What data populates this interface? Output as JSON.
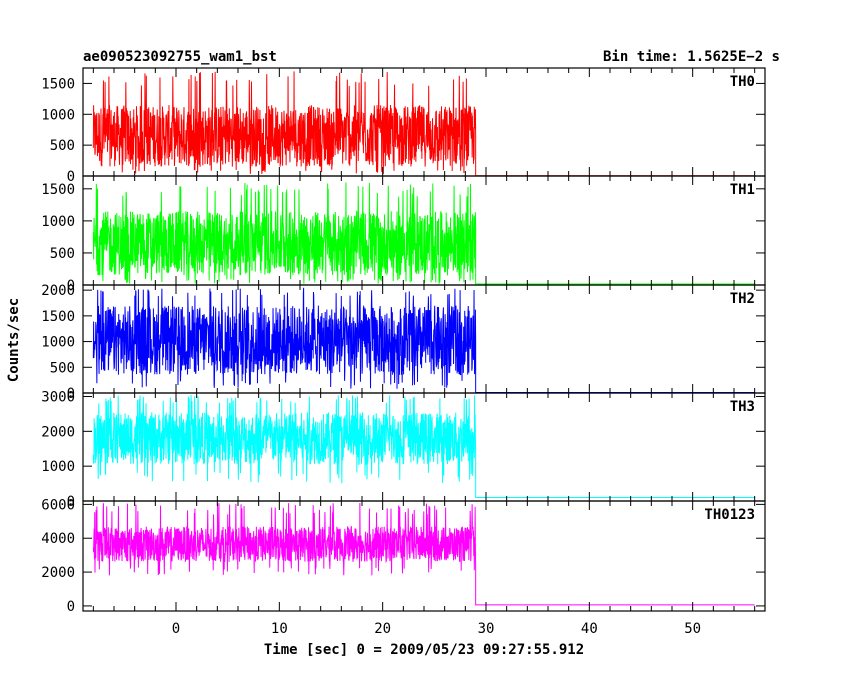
{
  "header": {
    "title": "ae090523092755_wam1_bst",
    "bin_time": "Bin time: 1.5625E−2 s"
  },
  "axes": {
    "xlabel": "Time [sec] 0 = 2009/05/23 09:27:55.912",
    "ylabel": "Counts/sec",
    "xlim": [
      -9,
      57
    ],
    "xticks": [
      0,
      10,
      20,
      30,
      40,
      50
    ]
  },
  "chart_data": [
    {
      "type": "line",
      "name": "TH0",
      "color": "#ff0000",
      "ylim": [
        0,
        1750
      ],
      "yticks": [
        0,
        500,
        1000,
        1500
      ],
      "signal_x_range": [
        -8,
        29
      ],
      "signal_band": {
        "low": 30,
        "high": 1700,
        "typical": [
          150,
          1150
        ]
      },
      "post_x_range": [
        29,
        56
      ],
      "post_level": 5
    },
    {
      "type": "line",
      "name": "TH1",
      "color": "#00ff00",
      "ylim": [
        0,
        1700
      ],
      "yticks": [
        0,
        500,
        1000,
        1500
      ],
      "signal_x_range": [
        -8,
        29
      ],
      "signal_band": {
        "low": 20,
        "high": 1600,
        "typical": [
          150,
          1150
        ]
      },
      "post_x_range": [
        29,
        56
      ],
      "post_level": 15
    },
    {
      "type": "line",
      "name": "TH2",
      "color": "#0000ff",
      "ylim": [
        0,
        2100
      ],
      "yticks": [
        0,
        500,
        1000,
        1500,
        2000
      ],
      "signal_x_range": [
        -8,
        29
      ],
      "signal_band": {
        "low": 80,
        "high": 2050,
        "typical": [
          350,
          1700
        ]
      },
      "post_x_range": [
        29,
        56
      ],
      "post_level": 10
    },
    {
      "type": "line",
      "name": "TH3",
      "color": "#00ffff",
      "ylim": [
        0,
        3100
      ],
      "yticks": [
        0,
        1000,
        2000,
        3000
      ],
      "signal_x_range": [
        -8,
        29
      ],
      "signal_band": {
        "low": 500,
        "high": 3050,
        "typical": [
          1050,
          2550
        ]
      },
      "post_x_range": [
        29,
        56
      ],
      "post_level": 100
    },
    {
      "type": "line",
      "name": "TH0123",
      "color": "#ff00ff",
      "ylim": [
        -300,
        6200
      ],
      "yticks": [
        0,
        2000,
        4000,
        6000
      ],
      "signal_x_range": [
        -8,
        29
      ],
      "signal_band": {
        "low": 1800,
        "high": 6100,
        "typical": [
          2600,
          4700
        ]
      },
      "post_x_range": [
        29,
        56
      ],
      "post_level": 60
    }
  ]
}
